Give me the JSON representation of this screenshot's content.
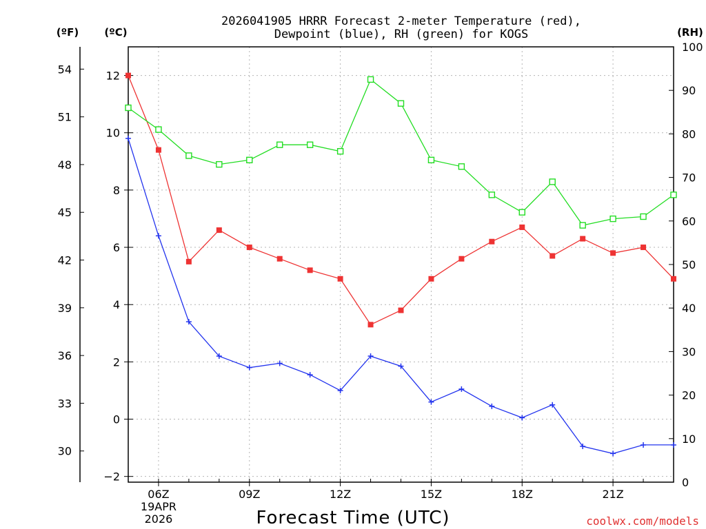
{
  "chart_data": {
    "type": "line",
    "title_line1": "2026041905 HRRR Forecast 2-meter Temperature (red),",
    "title_line2": "Dewpoint (blue), RH (green) for KOGS",
    "xlabel": "Forecast Time (UTC)",
    "credit": "coolwx.com/models",
    "left_outer_unit": "(ºF)",
    "left_inner_unit": "(ºC)",
    "right_unit": "(RH)",
    "x_hours": [
      5,
      6,
      7,
      8,
      9,
      10,
      11,
      12,
      13,
      14,
      15,
      16,
      17,
      18,
      19,
      20,
      21,
      22,
      23
    ],
    "xlim": [
      5,
      23
    ],
    "x_ticks": [
      {
        "hour": 6,
        "label": "06Z",
        "sub1": "19APR",
        "sub2": "2026"
      },
      {
        "hour": 9,
        "label": "09Z"
      },
      {
        "hour": 12,
        "label": "12Z"
      },
      {
        "hour": 15,
        "label": "15Z"
      },
      {
        "hour": 18,
        "label": "18Z"
      },
      {
        "hour": 21,
        "label": "21Z"
      }
    ],
    "celsius_axis": {
      "range": [
        -2.2,
        13.0
      ],
      "ticks": [
        -2,
        0,
        2,
        4,
        6,
        8,
        10,
        12
      ]
    },
    "fahrenheit_ticks": [
      30,
      33,
      36,
      39,
      42,
      45,
      48,
      51,
      54
    ],
    "rh_axis": {
      "range": [
        0,
        100
      ],
      "ticks": [
        0,
        10,
        20,
        30,
        40,
        50,
        60,
        70,
        80,
        90,
        100
      ]
    },
    "series": [
      {
        "name": "Temperature",
        "unit": "C",
        "color": "#ee3333",
        "marker": "filled-square",
        "values": [
          12.0,
          9.4,
          5.5,
          6.6,
          6.0,
          5.6,
          5.2,
          4.9,
          3.3,
          3.8,
          4.9,
          5.6,
          6.2,
          6.7,
          5.7,
          6.3,
          5.8,
          6.0,
          4.9
        ]
      },
      {
        "name": "Dewpoint",
        "unit": "C",
        "color": "#2233ee",
        "marker": "plus",
        "values": [
          9.8,
          6.4,
          3.4,
          2.2,
          1.8,
          1.95,
          1.55,
          1.0,
          2.2,
          1.85,
          0.6,
          1.05,
          0.45,
          0.05,
          0.5,
          -0.95,
          -1.2,
          -0.9,
          -0.9
        ]
      },
      {
        "name": "RH",
        "unit": "%",
        "color": "#22dd22",
        "marker": "open-square",
        "values": [
          86,
          81,
          75,
          73,
          74,
          77.5,
          77.5,
          76,
          92.5,
          87,
          74,
          72.5,
          66,
          62,
          69,
          59,
          60.5,
          61,
          66
        ]
      }
    ]
  }
}
